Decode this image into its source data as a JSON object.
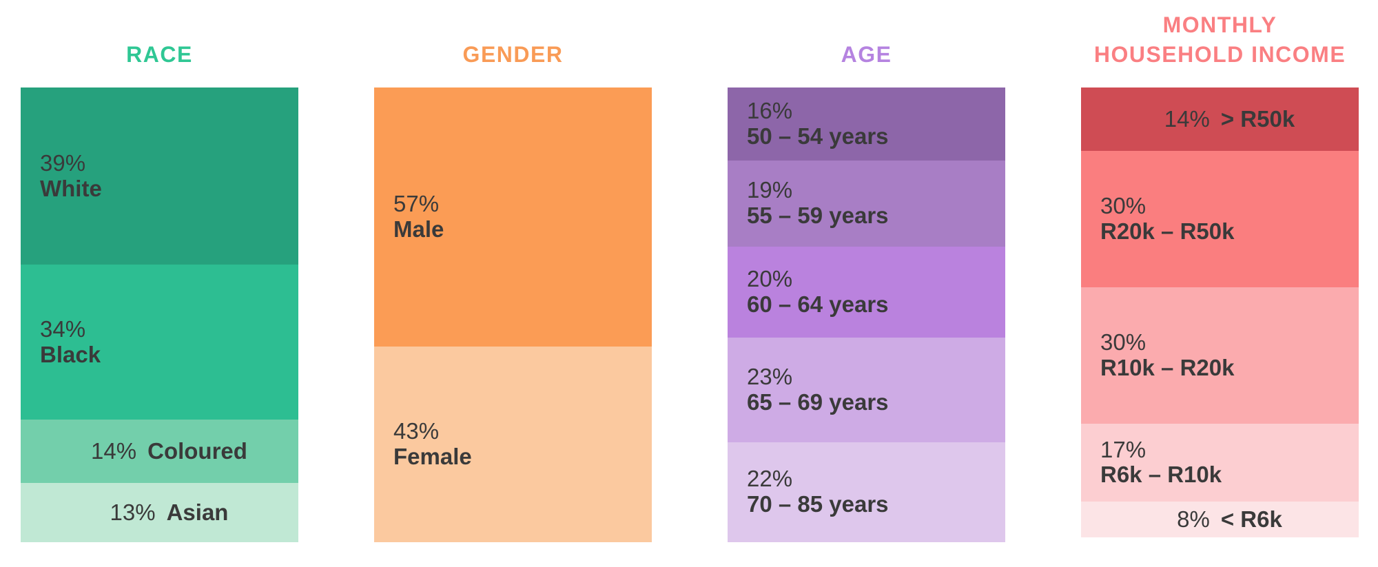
{
  "page_background": "#FFFFFF",
  "text_color": "#3A3A3A",
  "columns": [
    {
      "id": "race",
      "title": "RACE",
      "title_lines": [
        "RACE"
      ],
      "title_color": "#2FC794",
      "segments": [
        {
          "pct": "39%",
          "label": "White",
          "value": 39,
          "color": "#26A17D"
        },
        {
          "pct": "34%",
          "label": "Black",
          "value": 34,
          "color": "#2DBE92"
        },
        {
          "pct": "14%",
          "label": "Coloured",
          "value": 14,
          "color": "#73CFAB",
          "inline": true
        },
        {
          "pct": "13%",
          "label": "Asian",
          "value": 13,
          "color": "#C0E8D4",
          "inline": true
        }
      ]
    },
    {
      "id": "gender",
      "title": "GENDER",
      "title_lines": [
        "GENDER"
      ],
      "title_color": "#F99B56",
      "segments": [
        {
          "pct": "57%",
          "label": "Male",
          "value": 57,
          "color": "#FB9C55"
        },
        {
          "pct": "43%",
          "label": "Female",
          "value": 43,
          "color": "#FBC99F"
        }
      ]
    },
    {
      "id": "age",
      "title": "AGE",
      "title_lines": [
        "AGE"
      ],
      "title_color": "#B583E0",
      "segments": [
        {
          "pct": "16%",
          "label": "50 – 54 years",
          "value": 16,
          "color": "#8D66A9"
        },
        {
          "pct": "19%",
          "label": "55 – 59 years",
          "value": 19,
          "color": "#A87EC5"
        },
        {
          "pct": "20%",
          "label": "60 – 64 years",
          "value": 20,
          "color": "#BA82DE"
        },
        {
          "pct": "23%",
          "label": "65 – 69 years",
          "value": 23,
          "color": "#CEABE5"
        },
        {
          "pct": "22%",
          "label": "70 – 85 years",
          "value": 22,
          "color": "#DEC7EC"
        }
      ]
    },
    {
      "id": "income",
      "title": "MONTHLY HOUSEHOLD INCOME",
      "title_lines": [
        "MONTHLY",
        "HOUSEHOLD INCOME"
      ],
      "title_color": "#FA7F82",
      "segments": [
        {
          "pct": "14%",
          "label": "> R50k",
          "value": 14,
          "color": "#CF4C54",
          "inline": true
        },
        {
          "pct": "30%",
          "label": "R20k – R50k",
          "value": 30,
          "color": "#FA7E7F"
        },
        {
          "pct": "30%",
          "label": "R10k – R20k",
          "value": 30,
          "color": "#FBABAE"
        },
        {
          "pct": "17%",
          "label": "R6k – R10k",
          "value": 17,
          "color": "#FCCED1"
        },
        {
          "pct": "8%",
          "label": "< R6k",
          "value": 8,
          "color": "#FCE4E6",
          "inline": true
        }
      ]
    }
  ],
  "chart_data": [
    {
      "type": "bar",
      "stacked": true,
      "orientation": "vertical",
      "unit": "%",
      "title": "RACE",
      "categories": [
        "White",
        "Black",
        "Coloured",
        "Asian"
      ],
      "values": [
        39,
        34,
        14,
        13
      ],
      "colors": [
        "#26A17D",
        "#2DBE92",
        "#73CFAB",
        "#C0E8D4"
      ],
      "legend_position": "none",
      "value_labels": "inside",
      "ylim": [
        0,
        100
      ]
    },
    {
      "type": "bar",
      "stacked": true,
      "orientation": "vertical",
      "unit": "%",
      "title": "GENDER",
      "categories": [
        "Male",
        "Female"
      ],
      "values": [
        57,
        43
      ],
      "colors": [
        "#FB9C55",
        "#FBC99F"
      ],
      "legend_position": "none",
      "value_labels": "inside",
      "ylim": [
        0,
        100
      ]
    },
    {
      "type": "bar",
      "stacked": true,
      "orientation": "vertical",
      "unit": "%",
      "title": "AGE",
      "categories": [
        "50 – 54 years",
        "55 – 59 years",
        "60 – 64 years",
        "65 – 69 years",
        "70 – 85 years"
      ],
      "values": [
        16,
        19,
        20,
        23,
        22
      ],
      "colors": [
        "#8D66A9",
        "#A87EC5",
        "#BA82DE",
        "#CEABE5",
        "#DEC7EC"
      ],
      "legend_position": "none",
      "value_labels": "inside",
      "ylim": [
        0,
        100
      ]
    },
    {
      "type": "bar",
      "stacked": true,
      "orientation": "vertical",
      "unit": "%",
      "title": "MONTHLY HOUSEHOLD INCOME",
      "categories": [
        "> R50k",
        "R20k – R50k",
        "R10k – R20k",
        "R6k – R10k",
        "< R6k"
      ],
      "values": [
        14,
        30,
        30,
        17,
        8
      ],
      "colors": [
        "#CF4C54",
        "#FA7E7F",
        "#FBABAE",
        "#FCCED1",
        "#FCE4E6"
      ],
      "legend_position": "none",
      "value_labels": "inside",
      "ylim": [
        0,
        100
      ]
    }
  ]
}
